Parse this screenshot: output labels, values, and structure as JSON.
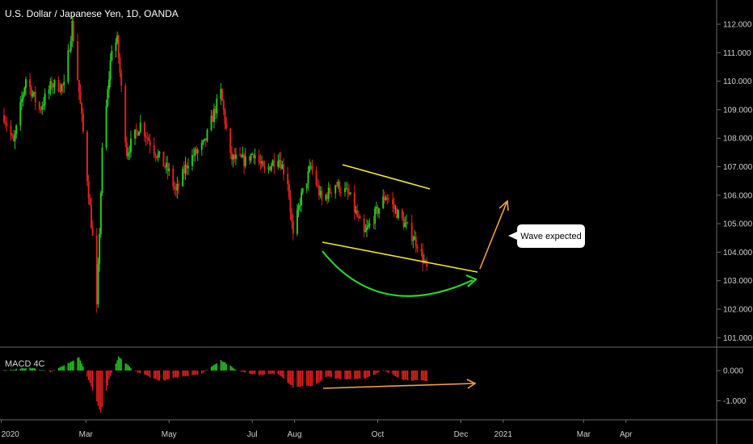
{
  "header": {
    "title": "U.S. Dollar / Japanese Yen, 1D, OANDA"
  },
  "indicator": {
    "label": "MACD 4C"
  },
  "annotation": {
    "text": "Wave expected"
  },
  "colors": {
    "up": "#26c626",
    "down": "#e02020",
    "trend": "#f2e82e",
    "arc": "#27d32a",
    "arrow": "#f0a050",
    "axis": "#cfcfcf",
    "grid_line": "#6a6a6a"
  },
  "chart_data": {
    "type": "candlestick",
    "title": "U.S. Dollar / Japanese Yen, 1D, OANDA",
    "ylim": [
      100.6,
      112.5
    ],
    "y_ticks": [
      "112.000",
      "111.000",
      "110.000",
      "109.000",
      "108.000",
      "107.000",
      "106.000",
      "105.000",
      "104.000",
      "103.000",
      "102.000",
      "101.000"
    ],
    "x_ticks": [
      "2020",
      "Mar",
      "May",
      "Jul",
      "Aug",
      "Oct",
      "Dec",
      "2021",
      "Mar",
      "Apr"
    ],
    "anchors": [
      [
        "2020-01-01",
        108.8
      ],
      [
        "2020-01-08",
        107.8
      ],
      [
        "2020-01-17",
        110.1
      ],
      [
        "2020-01-27",
        109.0
      ],
      [
        "2020-02-05",
        109.9
      ],
      [
        "2020-02-14",
        109.8
      ],
      [
        "2020-02-20",
        112.0
      ],
      [
        "2020-02-28",
        108.2
      ],
      [
        "2020-03-06",
        104.5
      ],
      [
        "2020-03-09",
        102.0
      ],
      [
        "2020-03-13",
        107.5
      ],
      [
        "2020-03-20",
        111.2
      ],
      [
        "2020-03-24",
        111.4
      ],
      [
        "2020-03-31",
        107.5
      ],
      [
        "2020-04-10",
        108.5
      ],
      [
        "2020-04-20",
        107.6
      ],
      [
        "2020-05-01",
        106.8
      ],
      [
        "2020-05-06",
        106.1
      ],
      [
        "2020-05-15",
        107.2
      ],
      [
        "2020-05-27",
        107.8
      ],
      [
        "2020-06-03",
        108.9
      ],
      [
        "2020-06-08",
        109.6
      ],
      [
        "2020-06-15",
        107.3
      ],
      [
        "2020-06-26",
        107.2
      ],
      [
        "2020-07-02",
        107.5
      ],
      [
        "2020-07-10",
        106.8
      ],
      [
        "2020-07-20",
        107.4
      ],
      [
        "2020-07-27",
        106.5
      ],
      [
        "2020-07-31",
        104.5
      ],
      [
        "2020-08-05",
        105.8
      ],
      [
        "2020-08-13",
        107.0
      ],
      [
        "2020-08-21",
        105.8
      ],
      [
        "2020-08-31",
        106.4
      ],
      [
        "2020-09-10",
        106.0
      ],
      [
        "2020-09-21",
        104.6
      ],
      [
        "2020-09-30",
        105.4
      ],
      [
        "2020-10-07",
        106.0
      ],
      [
        "2020-10-15",
        105.4
      ],
      [
        "2020-10-22",
        104.9
      ],
      [
        "2020-10-30",
        104.3
      ],
      [
        "2020-11-06",
        103.4
      ]
    ],
    "macd": {
      "label": "MACD 4C",
      "ylim": [
        -1.5,
        0.6
      ],
      "y_ticks": [
        "0.000",
        "-1.000"
      ],
      "anchors": [
        [
          "2020-01-01",
          0.0
        ],
        [
          "2020-01-20",
          0.1
        ],
        [
          "2020-02-05",
          -0.05
        ],
        [
          "2020-02-25",
          0.45
        ],
        [
          "2020-03-03",
          -0.3
        ],
        [
          "2020-03-12",
          -1.4
        ],
        [
          "2020-03-18",
          -0.3
        ],
        [
          "2020-03-25",
          0.45
        ],
        [
          "2020-04-05",
          0.0
        ],
        [
          "2020-04-25",
          -0.35
        ],
        [
          "2020-05-10",
          -0.2
        ],
        [
          "2020-05-25",
          -0.1
        ],
        [
          "2020-06-08",
          0.35
        ],
        [
          "2020-06-20",
          0.0
        ],
        [
          "2020-07-05",
          -0.15
        ],
        [
          "2020-07-20",
          -0.1
        ],
        [
          "2020-07-31",
          -0.55
        ],
        [
          "2020-08-15",
          -0.5
        ],
        [
          "2020-08-25",
          -0.2
        ],
        [
          "2020-09-05",
          -0.3
        ],
        [
          "2020-09-22",
          -0.25
        ],
        [
          "2020-10-05",
          0.0
        ],
        [
          "2020-10-20",
          -0.3
        ],
        [
          "2020-11-06",
          -0.35
        ]
      ]
    }
  }
}
